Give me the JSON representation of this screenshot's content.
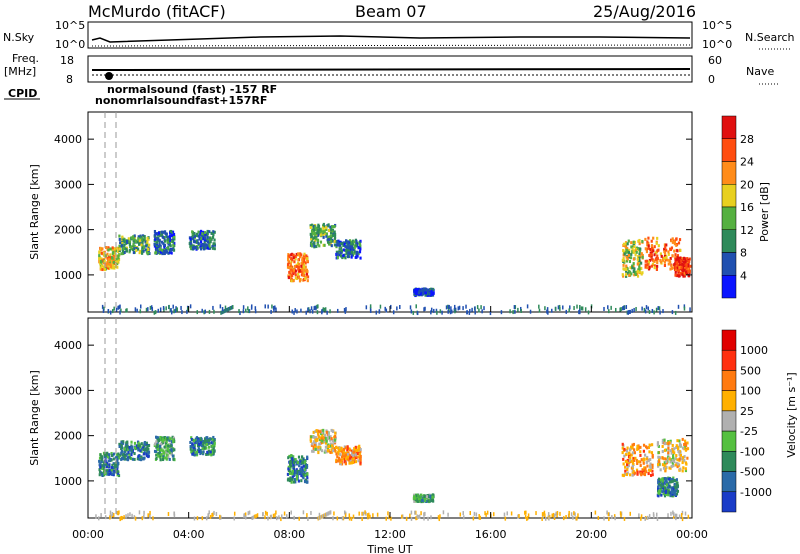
{
  "header": {
    "station": "McMurdo (fitACF)",
    "beam": "Beam 07",
    "date": "25/Aug/2016"
  },
  "strip_labels": {
    "nsky": "N.Sky",
    "nsky_exp_top": "10^5",
    "nsky_exp_bot": "10^0",
    "nsearch": "N.Search",
    "nsearch_top": "10^5",
    "nsearch_bot": "10^0",
    "freq_line1": "Freq.",
    "freq_line2": "[MHz]",
    "freq_top": "18",
    "freq_bot": "8",
    "nave": "Nave",
    "nave_top": "60",
    "nave_bot": "0",
    "cpid": "CPID",
    "cpid_text_main": "normalsound (fast) -157 RF",
    "cpid_text_overlap": "nonomrlalsoundfast+157RF"
  },
  "chart_data": [
    {
      "type": "heatmap",
      "name": "Power panel",
      "ylabel": "Slant Range [km]",
      "xlabel": "",
      "ylim": [
        180,
        4600
      ],
      "yticks": [
        1000,
        2000,
        3000,
        4000
      ],
      "x_ticks": [
        "00:00",
        "04:00",
        "08:00",
        "12:00",
        "16:00",
        "20:00",
        "00:00"
      ],
      "colorbar": {
        "label": "Power [dB]",
        "ticks": [
          "28",
          "24",
          "20",
          "16",
          "12",
          "8",
          "4"
        ],
        "colors": [
          "#0a14ff",
          "#2050b0",
          "#2e8a5a",
          "#55b040",
          "#e8d020",
          "#ff8c1a",
          "#ff4d10",
          "#e01010"
        ]
      },
      "blobs": [
        {
          "t": 0.8,
          "r": 1400,
          "dt": 0.8,
          "dr": 500,
          "level": 5
        },
        {
          "t": 1.8,
          "r": 1700,
          "dt": 1.2,
          "dr": 400,
          "level": 3
        },
        {
          "t": 3.0,
          "r": 1750,
          "dt": 0.8,
          "dr": 500,
          "level": 2
        },
        {
          "t": 4.5,
          "r": 1800,
          "dt": 1.0,
          "dr": 400,
          "level": 2
        },
        {
          "t": 8.3,
          "r": 1200,
          "dt": 0.8,
          "dr": 600,
          "level": 6
        },
        {
          "t": 9.3,
          "r": 1900,
          "dt": 1.0,
          "dr": 500,
          "level": 3
        },
        {
          "t": 10.3,
          "r": 1600,
          "dt": 1.0,
          "dr": 400,
          "level": 2
        },
        {
          "t": 21.6,
          "r": 1400,
          "dt": 0.8,
          "dr": 800,
          "level": 4
        },
        {
          "t": 22.8,
          "r": 1500,
          "dt": 1.4,
          "dr": 700,
          "level": 6
        },
        {
          "t": 23.6,
          "r": 1200,
          "dt": 0.6,
          "dr": 400,
          "level": 7
        },
        {
          "t": 13.3,
          "r": 650,
          "dt": 0.8,
          "dr": 150,
          "level": 1
        }
      ]
    },
    {
      "type": "heatmap",
      "name": "Velocity panel",
      "ylabel": "Slant Range [km]",
      "xlabel": "Time UT",
      "ylim": [
        180,
        4600
      ],
      "yticks": [
        1000,
        2000,
        3000,
        4000
      ],
      "x_ticks": [
        "00:00",
        "04:00",
        "08:00",
        "12:00",
        "16:00",
        "20:00",
        "00:00"
      ],
      "colorbar": {
        "label": "Velocity [m s⁻¹]",
        "ticks": [
          "1000",
          "500",
          "100",
          "25",
          "-25",
          "-100",
          "-500",
          "-1000"
        ],
        "colors": [
          "#1a3cc8",
          "#2a6aa8",
          "#2e8a5a",
          "#55c040",
          "#b0b0b0",
          "#ffb000",
          "#ff7a10",
          "#ff3010",
          "#e00000"
        ]
      },
      "blobs": [
        {
          "t": 0.8,
          "r": 1400,
          "dt": 0.8,
          "dr": 500,
          "level": 2
        },
        {
          "t": 1.8,
          "r": 1700,
          "dt": 1.2,
          "dr": 400,
          "level": 2
        },
        {
          "t": 3.0,
          "r": 1750,
          "dt": 0.8,
          "dr": 500,
          "level": 3
        },
        {
          "t": 4.5,
          "r": 1800,
          "dt": 1.0,
          "dr": 400,
          "level": 2
        },
        {
          "t": 8.3,
          "r": 1300,
          "dt": 0.8,
          "dr": 600,
          "level": 2
        },
        {
          "t": 9.3,
          "r": 1900,
          "dt": 1.0,
          "dr": 500,
          "level": 5
        },
        {
          "t": 10.3,
          "r": 1600,
          "dt": 1.0,
          "dr": 400,
          "level": 6
        },
        {
          "t": 21.8,
          "r": 1500,
          "dt": 1.2,
          "dr": 700,
          "level": 6
        },
        {
          "t": 23.2,
          "r": 1600,
          "dt": 1.2,
          "dr": 700,
          "level": 5
        },
        {
          "t": 23.0,
          "r": 900,
          "dt": 0.8,
          "dr": 400,
          "level": 2
        },
        {
          "t": 13.3,
          "r": 650,
          "dt": 0.8,
          "dr": 150,
          "level": 3
        }
      ]
    }
  ]
}
